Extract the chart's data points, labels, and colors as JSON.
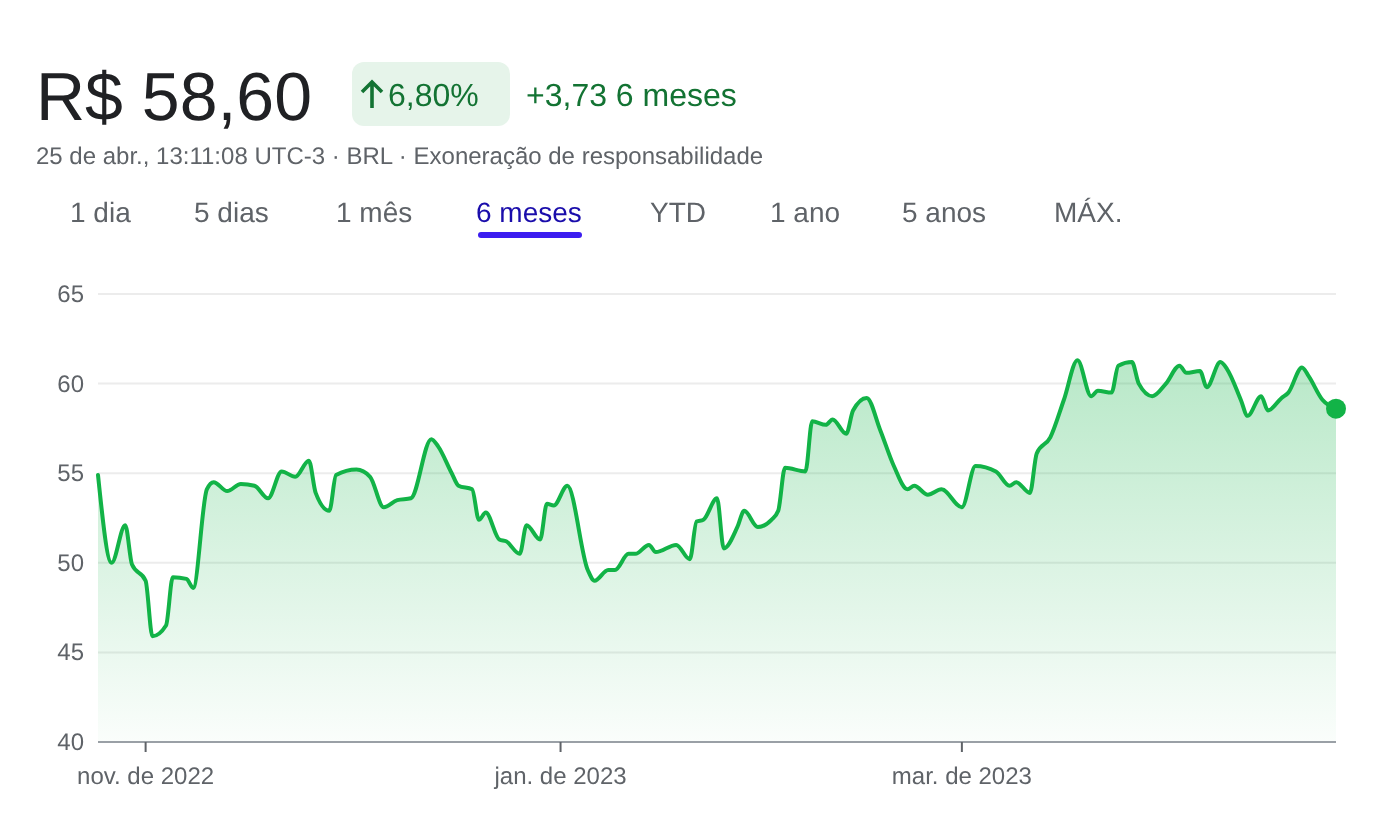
{
  "chart_data": {
    "type": "area",
    "title": "R$ 58,60",
    "subtitle": "25 de abr., 13:11:08 UTC-3 · BRL · Exoneração de responsabilidade",
    "annotations": [
      "6,80%",
      "+3,73 6 meses",
      "1 dia",
      "5 dias",
      "1 mês",
      "6 meses",
      "YTD",
      "1 ano",
      "5 anos",
      "MÁX."
    ],
    "x": [
      "2022-10-25",
      "2022-10-27",
      "2022-10-29",
      "2022-10-30",
      "2022-11-01",
      "2022-11-02",
      "2022-11-04",
      "2022-11-05",
      "2022-11-07",
      "2022-11-08",
      "2022-11-10",
      "2022-11-11",
      "2022-11-13",
      "2022-11-15",
      "2022-11-17",
      "2022-11-19",
      "2022-11-21",
      "2022-11-23",
      "2022-11-25",
      "2022-11-26",
      "2022-11-28",
      "2022-11-29",
      "2022-12-02",
      "2022-12-04",
      "2022-12-06",
      "2022-12-08",
      "2022-12-10",
      "2022-12-13",
      "2022-12-14",
      "2022-12-16",
      "2022-12-17",
      "2022-12-19",
      "2022-12-20",
      "2022-12-21",
      "2022-12-23",
      "2022-12-24",
      "2022-12-26",
      "2022-12-27",
      "2022-12-29",
      "2022-12-30",
      "2022-12-31",
      "2023-01-02",
      "2023-01-05",
      "2023-01-06",
      "2023-01-08",
      "2023-01-09",
      "2023-01-11",
      "2023-01-12",
      "2023-01-14",
      "2023-01-15",
      "2023-01-18",
      "2023-01-20",
      "2023-01-21",
      "2023-01-22",
      "2023-01-24",
      "2023-01-25",
      "2023-01-27",
      "2023-01-28",
      "2023-01-30",
      "2023-02-01",
      "2023-02-02",
      "2023-02-03",
      "2023-02-06",
      "2023-02-07",
      "2023-02-09",
      "2023-02-10",
      "2023-02-12",
      "2023-02-13",
      "2023-02-15",
      "2023-02-17",
      "2023-02-19",
      "2023-02-21",
      "2023-02-22",
      "2023-02-24",
      "2023-02-26",
      "2023-03-01",
      "2023-03-03",
      "2023-03-06",
      "2023-03-08",
      "2023-03-09",
      "2023-03-11",
      "2023-03-12",
      "2023-03-14",
      "2023-03-16",
      "2023-03-18",
      "2023-03-20",
      "2023-03-21",
      "2023-03-23",
      "2023-03-24",
      "2023-03-26",
      "2023-03-27",
      "2023-03-29",
      "2023-03-31",
      "2023-04-02",
      "2023-04-03",
      "2023-04-05",
      "2023-04-06",
      "2023-04-08",
      "2023-04-09",
      "2023-04-11",
      "2023-04-12",
      "2023-04-14",
      "2023-04-15",
      "2023-04-17",
      "2023-04-18",
      "2023-04-20",
      "2023-04-21",
      "2023-04-23",
      "2023-04-25"
    ],
    "series": [
      {
        "color": "#12b347",
        "values": [
          54.9,
          50.0,
          52.1,
          49.9,
          49.0,
          45.9,
          46.5,
          49.2,
          49.1,
          48.6,
          54.1,
          54.5,
          54.0,
          54.4,
          54.3,
          53.6,
          55.1,
          54.8,
          55.7,
          53.9,
          52.9,
          54.9,
          55.2,
          54.8,
          53.1,
          53.5,
          53.6,
          56.9,
          56.5,
          55.0,
          54.3,
          54.1,
          52.4,
          52.8,
          51.3,
          51.2,
          50.5,
          52.1,
          51.3,
          53.3,
          53.2,
          54.3,
          49.6,
          49.0,
          49.6,
          49.6,
          50.5,
          50.5,
          51.0,
          50.6,
          51.0,
          50.2,
          52.3,
          52.4,
          53.6,
          50.8,
          52.0,
          52.9,
          52.0,
          52.4,
          52.9,
          55.3,
          55.1,
          57.9,
          57.7,
          58.0,
          57.2,
          58.5,
          59.2,
          57.4,
          55.4,
          54.1,
          54.3,
          53.8,
          54.1,
          53.1,
          55.4,
          55.1,
          54.3,
          54.5,
          53.9,
          56.1,
          57.0,
          59.1,
          61.3,
          59.3,
          59.6,
          59.5,
          61.0,
          61.2,
          60.0,
          59.3,
          60.0,
          61.0,
          60.6,
          60.7,
          59.8,
          61.2,
          60.8,
          59.1,
          58.2,
          59.3,
          58.5,
          59.2,
          59.5,
          60.9,
          60.4,
          59.1,
          58.6
        ]
      }
    ],
    "xlim": [
      "2022-10-25",
      "2023-04-25"
    ],
    "xticks": [
      {
        "value": "2022-11-01",
        "label": "nov. de 2022"
      },
      {
        "value": "2023-01-01",
        "label": "jan. de 2023"
      },
      {
        "value": "2023-03-01",
        "label": "mar. de 2023"
      }
    ],
    "ylim": [
      40,
      65
    ],
    "yticks": [
      40,
      45,
      50,
      55,
      60,
      65
    ],
    "grid": "y",
    "marker": "none",
    "line_style": "solid"
  }
}
